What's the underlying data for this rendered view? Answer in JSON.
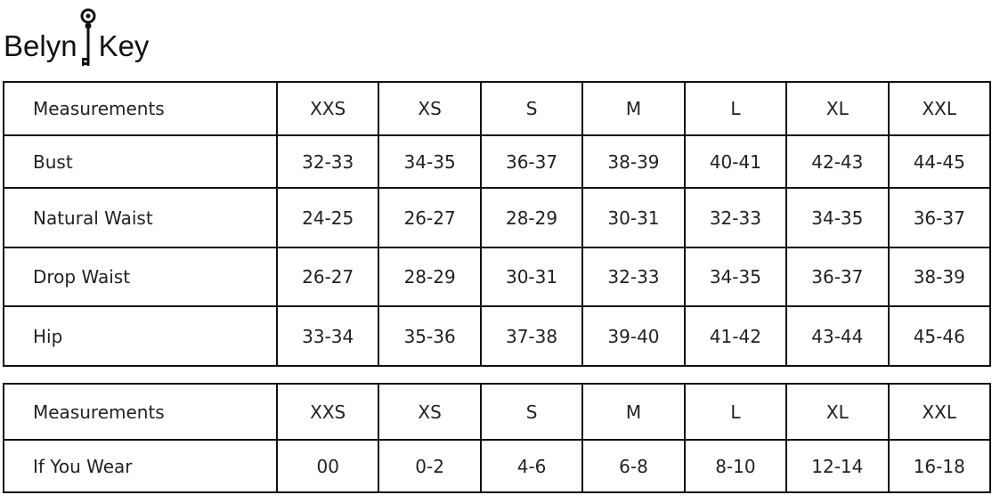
{
  "brand": {
    "left": "Belyn",
    "right": "Key",
    "logo_icon": "skeleton-key-icon"
  },
  "size_table": {
    "headers": [
      "Measurements",
      "XXS",
      "XS",
      "S",
      "M",
      "L",
      "XL",
      "XXL"
    ],
    "rows": [
      [
        "Bust",
        "32-33",
        "34-35",
        "36-37",
        "38-39",
        "40-41",
        "42-43",
        "44-45"
      ],
      [
        "Natural Waist",
        "24-25",
        "26-27",
        "28-29",
        "30-31",
        "32-33",
        "34-35",
        "36-37"
      ],
      [
        "Drop Waist",
        "26-27",
        "28-29",
        "30-31",
        "32-33",
        "34-35",
        "36-37",
        "38-39"
      ],
      [
        "Hip",
        "33-34",
        "35-36",
        "37-38",
        "39-40",
        "41-42",
        "43-44",
        "45-46"
      ]
    ]
  },
  "conversion_table": {
    "headers": [
      "Measurements",
      "XXS",
      "XS",
      "S",
      "M",
      "L",
      "XL",
      "XXL"
    ],
    "rows": [
      [
        "If You Wear",
        "00",
        "0-2",
        "4-6",
        "6-8",
        "8-10",
        "12-14",
        "16-18"
      ]
    ]
  }
}
